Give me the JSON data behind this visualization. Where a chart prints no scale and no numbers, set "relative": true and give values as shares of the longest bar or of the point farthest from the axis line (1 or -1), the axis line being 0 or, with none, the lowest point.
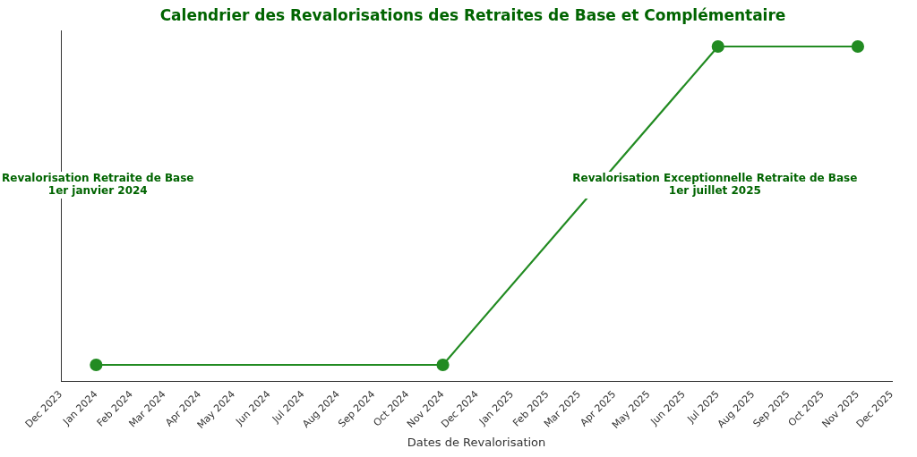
{
  "chart_data": {
    "type": "line",
    "title": "Calendrier des Revalorisations des Retraites de Base et Complémentaire",
    "xlabel": "Dates de Revalorisation",
    "relative": true,
    "x": [
      "2024-01-01",
      "2024-11-01",
      "2025-07-01",
      "2025-11-01"
    ],
    "series": [
      {
        "color": "#228b22",
        "values": [
          0.05,
          0.05,
          1,
          1
        ]
      }
    ],
    "marker": "circle",
    "line_style": "solid",
    "grid": false,
    "legend": false,
    "xlim": [
      "2023-12-01",
      "2025-12-01"
    ],
    "xticks": [
      {
        "value": "2023-12-01",
        "label": "Dec 2023"
      },
      {
        "value": "2024-01-01",
        "label": "Jan 2024"
      },
      {
        "value": "2024-02-01",
        "label": "Feb 2024"
      },
      {
        "value": "2024-03-01",
        "label": "Mar 2024"
      },
      {
        "value": "2024-04-01",
        "label": "Apr 2024"
      },
      {
        "value": "2024-05-01",
        "label": "May 2024"
      },
      {
        "value": "2024-06-01",
        "label": "Jun 2024"
      },
      {
        "value": "2024-07-01",
        "label": "Jul 2024"
      },
      {
        "value": "2024-08-01",
        "label": "Aug 2024"
      },
      {
        "value": "2024-09-01",
        "label": "Sep 2024"
      },
      {
        "value": "2024-10-01",
        "label": "Oct 2024"
      },
      {
        "value": "2024-11-01",
        "label": "Nov 2024"
      },
      {
        "value": "2024-12-01",
        "label": "Dec 2024"
      },
      {
        "value": "2025-01-01",
        "label": "Jan 2025"
      },
      {
        "value": "2025-02-01",
        "label": "Feb 2025"
      },
      {
        "value": "2025-03-01",
        "label": "Mar 2025"
      },
      {
        "value": "2025-04-01",
        "label": "Apr 2025"
      },
      {
        "value": "2025-05-01",
        "label": "May 2025"
      },
      {
        "value": "2025-06-01",
        "label": "Jun 2025"
      },
      {
        "value": "2025-07-01",
        "label": "Jul 2025"
      },
      {
        "value": "2025-08-01",
        "label": "Aug 2025"
      },
      {
        "value": "2025-09-01",
        "label": "Sep 2025"
      },
      {
        "value": "2025-10-01",
        "label": "Oct 2025"
      },
      {
        "value": "2025-11-01",
        "label": "Nov 2025"
      },
      {
        "value": "2025-12-01",
        "label": "Dec 2025"
      }
    ],
    "annotations": [
      "Revalorisation Retraite de Base\n1er janvier 2024",
      "Revalorisation Exceptionnelle Retraite de Base\n1er juillet 2025"
    ]
  }
}
